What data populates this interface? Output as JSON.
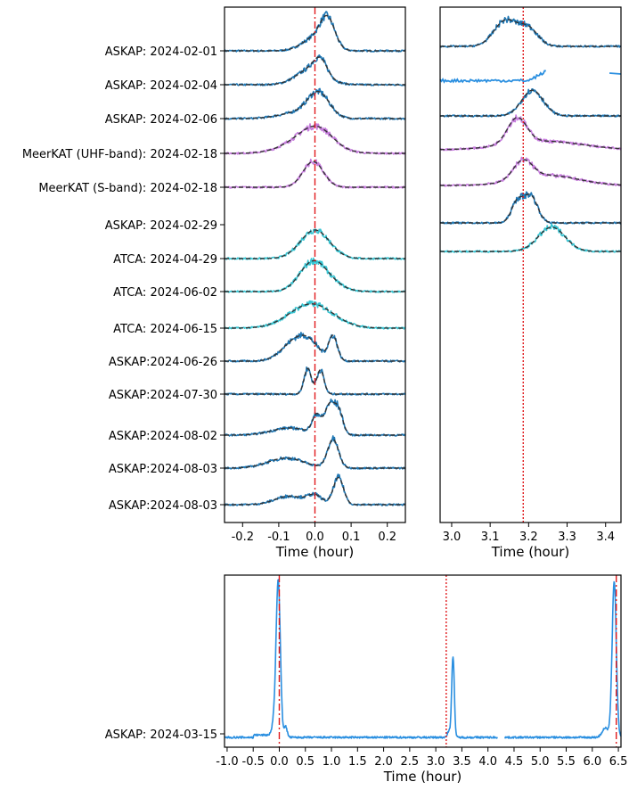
{
  "chart_data": [
    {
      "id": "left",
      "type": "line",
      "xlabel": "Time (hour)",
      "xlim": [
        -0.25,
        0.25
      ],
      "xticks": [
        -0.2,
        -0.1,
        0.0,
        0.1,
        0.2
      ],
      "xtick_labels": [
        "-0.2",
        "-0.1",
        "0.0",
        "0.1",
        "0.2"
      ],
      "marker_line": {
        "x": 0.0,
        "style": "dash-dot",
        "color": "#e0191c"
      },
      "rows": [
        {
          "label": "ASKAP: 2024-02-01",
          "color": "#1f77b4",
          "comps": [
            [
              0.0,
              0.035,
              0.45
            ],
            [
              0.035,
              0.02,
              0.95
            ]
          ]
        },
        {
          "label": "ASKAP: 2024-02-04",
          "color": "#1f77b4",
          "comps": [
            [
              -0.01,
              0.04,
              0.55
            ],
            [
              0.015,
              0.018,
              0.5
            ]
          ]
        },
        {
          "label": "ASKAP: 2024-02-06",
          "color": "#1f77b4",
          "comps": [
            [
              -0.05,
              0.05,
              0.2
            ],
            [
              0.01,
              0.03,
              0.85
            ]
          ]
        },
        {
          "label": "MeerKAT (UHF-band): 2024-02-18",
          "color": "#c77dde",
          "comps": [
            [
              -0.02,
              0.06,
              0.55
            ],
            [
              0.01,
              0.04,
              0.45
            ]
          ]
        },
        {
          "label": "MeerKAT (S-band): 2024-02-18",
          "color": "#c77dde",
          "comps": [
            [
              -0.005,
              0.028,
              0.9
            ]
          ]
        },
        {
          "label": "ASKAP: 2024-02-29",
          "color": "#1f77b4",
          "comps": []
        },
        {
          "label": "ATCA: 2024-04-29",
          "color": "#36c5d3",
          "comps": [
            [
              0.0,
              0.04,
              1.0
            ]
          ]
        },
        {
          "label": "ATCA: 2024-06-02",
          "color": "#36c5d3",
          "comps": [
            [
              -0.01,
              0.035,
              0.85
            ],
            [
              0.03,
              0.04,
              0.35
            ]
          ]
        },
        {
          "label": "ATCA: 2024-06-15",
          "color": "#36c5d3",
          "comps": [
            [
              -0.01,
              0.06,
              0.85
            ]
          ]
        },
        {
          "label": "ASKAP:2024-06-26",
          "color": "#1f77b4",
          "comps": [
            [
              -0.06,
              0.035,
              0.6
            ],
            [
              -0.015,
              0.03,
              0.55
            ],
            [
              0.05,
              0.012,
              0.85
            ]
          ]
        },
        {
          "label": "ASKAP:2024-07-30",
          "color": "#1f77b4",
          "comps": [
            [
              -0.02,
              0.01,
              0.9
            ],
            [
              0.015,
              0.01,
              0.85
            ]
          ]
        },
        {
          "label": "ASKAP:2024-08-02",
          "color": "#1f77b4",
          "comps": [
            [
              -0.07,
              0.05,
              0.25
            ],
            [
              0.005,
              0.012,
              0.65
            ],
            [
              0.04,
              0.013,
              1.0
            ],
            [
              0.065,
              0.012,
              0.85
            ]
          ]
        },
        {
          "label": "ASKAP:2024-08-03",
          "color": "#1f77b4",
          "comps": [
            [
              -0.08,
              0.05,
              0.35
            ],
            [
              0.05,
              0.015,
              1.0
            ]
          ]
        },
        {
          "label": "ASKAP:2024-08-03",
          "color": "#1f77b4",
          "comps": [
            [
              -0.07,
              0.04,
              0.3
            ],
            [
              0.0,
              0.02,
              0.3
            ],
            [
              0.065,
              0.014,
              0.95
            ]
          ]
        }
      ]
    },
    {
      "id": "right",
      "type": "line",
      "xlabel": "Time (hour)",
      "xlim": [
        2.97,
        3.44
      ],
      "xticks": [
        3.0,
        3.1,
        3.2,
        3.3,
        3.4
      ],
      "xtick_labels": [
        "3.0",
        "3.1",
        "3.2",
        "3.3",
        "3.4"
      ],
      "marker_line": {
        "x": 3.186,
        "style": "dotted",
        "color": "#e0191c"
      },
      "rows": [
        {
          "color": "#1f77b4",
          "comps": [
            [
              3.14,
              0.03,
              0.9
            ],
            [
              3.2,
              0.025,
              0.6
            ]
          ]
        },
        {
          "color": "#2a8fe0",
          "comps": []
        },
        {
          "color": "#1f77b4",
          "comps": [
            [
              3.21,
              0.028,
              0.9
            ]
          ]
        },
        {
          "color": "#c77dde",
          "comps": [
            [
              3.17,
              0.025,
              0.9
            ],
            [
              3.24,
              0.1,
              0.3
            ]
          ]
        },
        {
          "color": "#c77dde",
          "comps": [
            [
              3.185,
              0.025,
              0.65
            ],
            [
              3.25,
              0.08,
              0.35
            ]
          ]
        },
        {
          "color": "#1f77b4",
          "comps": [
            [
              3.17,
              0.015,
              0.7
            ],
            [
              3.205,
              0.018,
              0.95
            ]
          ]
        },
        {
          "color": "#36c5d3",
          "comps": [
            [
              3.26,
              0.035,
              0.85
            ]
          ]
        }
      ]
    },
    {
      "id": "bottom",
      "type": "line",
      "row_label": "ASKAP: 2024-03-15",
      "xlabel": "Time (hour)",
      "xlim": [
        -1.05,
        6.55
      ],
      "xticks": [
        -1.0,
        -0.5,
        0.0,
        0.5,
        1.0,
        1.5,
        2.0,
        2.5,
        3.0,
        3.5,
        4.0,
        4.5,
        5.0,
        5.5,
        6.0,
        6.5
      ],
      "xtick_labels": [
        "-1.0",
        "-0.5",
        "0.0",
        "0.5",
        "1.0",
        "1.5",
        "2.0",
        "2.5",
        "3.0",
        "3.5",
        "4.0",
        "4.5",
        "5.0",
        "5.5",
        "6.0",
        "6.5"
      ],
      "color": "#2a8fe0",
      "peaks": [
        {
          "t": -0.02,
          "w": 0.04,
          "amp": 1.0
        },
        {
          "t": 3.33,
          "w": 0.025,
          "amp": 0.52
        },
        {
          "t": 6.42,
          "w": 0.04,
          "amp": 1.0
        }
      ],
      "marker_lines": [
        {
          "x": 0.0,
          "style": "dash-dot",
          "color": "#e0191c"
        },
        {
          "x": 3.2,
          "style": "dotted",
          "color": "#e0191c"
        },
        {
          "x": 6.46,
          "style": "dash-dot",
          "color": "#e0191c"
        }
      ]
    }
  ]
}
